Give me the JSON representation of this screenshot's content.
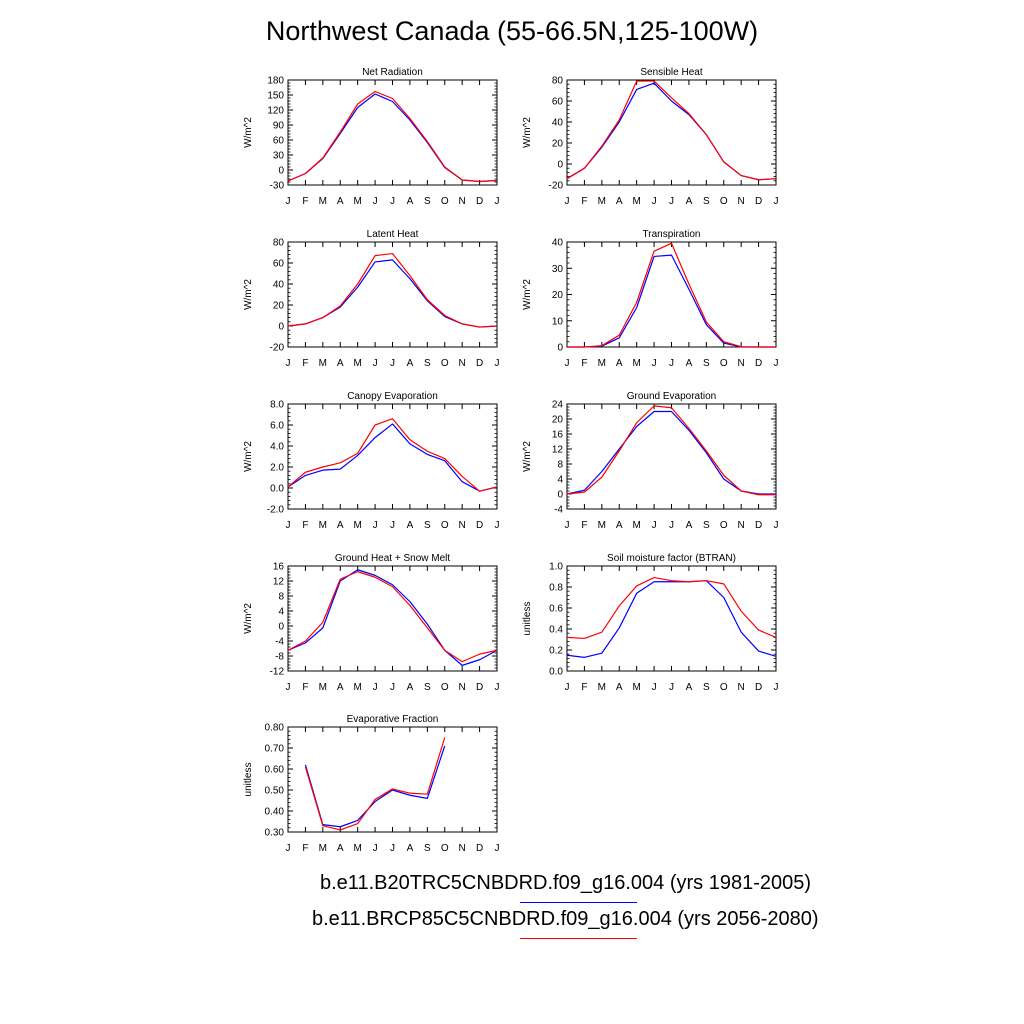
{
  "title": "Northwest Canada (55-66.5N,125-100W)",
  "months": [
    "J",
    "F",
    "M",
    "A",
    "M",
    "J",
    "J",
    "A",
    "S",
    "O",
    "N",
    "D",
    "J"
  ],
  "colors": {
    "series1": "#0000ff",
    "series2": "#ff0000"
  },
  "legend": [
    {
      "label": "b.e11.B20TRC5CNBDRD.f09_g16.004 (yrs 1981-2005)",
      "color": "#0000ff"
    },
    {
      "label": "b.e11.BRCP85C5CNBDRD.f09_g16.004 (yrs 2056-2080)",
      "color": "#ff0000"
    }
  ],
  "chart_data": [
    {
      "type": "line",
      "title": "Net Radiation",
      "ylabel": "W/m^2",
      "ylim": [
        -30,
        180
      ],
      "yticks": [
        -30,
        0,
        30,
        60,
        90,
        120,
        150,
        180
      ],
      "ytick_labels": [
        "-30",
        "0",
        "30",
        "60",
        "90",
        "120",
        "150",
        "180"
      ],
      "series": [
        {
          "color": "#0000ff",
          "values": [
            -22,
            -7,
            23,
            73,
            125,
            152,
            137,
            100,
            55,
            5,
            -20,
            -23,
            -21
          ]
        },
        {
          "color": "#ff0000",
          "values": [
            -22,
            -7,
            24,
            76,
            132,
            157,
            143,
            103,
            57,
            6,
            -20,
            -23,
            -21
          ]
        }
      ]
    },
    {
      "type": "line",
      "title": "Sensible Heat",
      "ylabel": "W/m^2",
      "ylim": [
        -20,
        80
      ],
      "yticks": [
        -20,
        0,
        20,
        40,
        60,
        80
      ],
      "ytick_labels": [
        "-20",
        "0",
        "20",
        "40",
        "60",
        "80"
      ],
      "series": [
        {
          "color": "#0000ff",
          "values": [
            -14,
            -4,
            16,
            40,
            71,
            77,
            60,
            47,
            28,
            2,
            -11,
            -15,
            -14
          ]
        },
        {
          "color": "#ff0000",
          "values": [
            -14,
            -4,
            17,
            42,
            79,
            79,
            63,
            48,
            28,
            2,
            -11,
            -15,
            -14
          ]
        }
      ]
    },
    {
      "type": "line",
      "title": "Latent Heat",
      "ylabel": "W/m^2",
      "ylim": [
        -20,
        80
      ],
      "yticks": [
        -20,
        0,
        20,
        40,
        60,
        80
      ],
      "ytick_labels": [
        "-20",
        "0",
        "20",
        "40",
        "60",
        "80"
      ],
      "series": [
        {
          "color": "#0000ff",
          "values": [
            0,
            2,
            8,
            18,
            37,
            61,
            63,
            45,
            24,
            9,
            2,
            -1,
            0
          ]
        },
        {
          "color": "#ff0000",
          "values": [
            0,
            2,
            8,
            19,
            40,
            67,
            69,
            48,
            25,
            10,
            2,
            -1,
            0
          ]
        }
      ]
    },
    {
      "type": "line",
      "title": "Transpiration",
      "ylabel": "W/m^2",
      "ylim": [
        0,
        40
      ],
      "yticks": [
        0,
        10,
        20,
        30,
        40
      ],
      "ytick_labels": [
        "0",
        "10",
        "20",
        "30",
        "40"
      ],
      "series": [
        {
          "color": "#0000ff",
          "values": [
            0,
            0,
            0.3,
            3.5,
            15,
            34.5,
            35,
            22,
            8.5,
            1.5,
            0,
            0,
            0
          ]
        },
        {
          "color": "#ff0000",
          "values": [
            0,
            0,
            0.5,
            4.5,
            17,
            36.5,
            39.5,
            24,
            9.5,
            2,
            0.1,
            0,
            0
          ]
        }
      ]
    },
    {
      "type": "line",
      "title": "Canopy Evaporation",
      "ylabel": "W/m^2",
      "ylim": [
        -2.0,
        8.0
      ],
      "yticks": [
        -2,
        0,
        2,
        4,
        6,
        8
      ],
      "ytick_labels": [
        "-2.0",
        "0.0",
        "2.0",
        "4.0",
        "6.0",
        "8.0"
      ],
      "series": [
        {
          "color": "#0000ff",
          "values": [
            0.1,
            1.2,
            1.7,
            1.8,
            3.1,
            4.8,
            6.1,
            4.2,
            3.2,
            2.6,
            0.6,
            -0.3,
            0.1
          ]
        },
        {
          "color": "#ff0000",
          "values": [
            0.1,
            1.5,
            2.0,
            2.4,
            3.3,
            6.0,
            6.6,
            4.6,
            3.5,
            2.8,
            1.1,
            -0.3,
            0.1
          ]
        }
      ]
    },
    {
      "type": "line",
      "title": "Ground Evaporation",
      "ylabel": "W/m^2",
      "ylim": [
        -4,
        24
      ],
      "yticks": [
        -4,
        0,
        4,
        8,
        12,
        16,
        20,
        24
      ],
      "ytick_labels": [
        "-4",
        "0",
        "4",
        "8",
        "12",
        "16",
        "20",
        "24"
      ],
      "series": [
        {
          "color": "#0000ff",
          "values": [
            0,
            1,
            6,
            12,
            18,
            22,
            22,
            17,
            11,
            4,
            0.8,
            0,
            0
          ]
        },
        {
          "color": "#ff0000",
          "values": [
            0,
            0.5,
            4.5,
            11.5,
            19,
            23.5,
            23,
            17.5,
            11.5,
            5,
            0.8,
            -0.2,
            -0.2
          ]
        }
      ]
    },
    {
      "type": "line",
      "title": "Ground Heat + Snow Melt",
      "ylabel": "W/m^2",
      "ylim": [
        -12,
        16
      ],
      "yticks": [
        -12,
        -8,
        -4,
        0,
        4,
        8,
        12,
        16
      ],
      "ytick_labels": [
        "-12",
        "-8",
        "-4",
        "0",
        "4",
        "8",
        "12",
        "16"
      ],
      "series": [
        {
          "color": "#0000ff",
          "values": [
            -6.5,
            -4.5,
            -0.5,
            12,
            15,
            13.5,
            11,
            6.5,
            0.5,
            -6.5,
            -10.5,
            -9,
            -6.5
          ]
        },
        {
          "color": "#ff0000",
          "values": [
            -6.5,
            -4,
            1,
            12.5,
            14.5,
            13,
            10.5,
            5.5,
            -0.5,
            -6.5,
            -9.5,
            -7.5,
            -6.5
          ]
        }
      ]
    },
    {
      "type": "line",
      "title": "Soil moisture factor (BTRAN)",
      "ylabel": "unitless",
      "ylim": [
        0.0,
        1.0
      ],
      "yticks": [
        0,
        0.2,
        0.4,
        0.6,
        0.8,
        1.0
      ],
      "ytick_labels": [
        "0.0",
        "0.2",
        "0.4",
        "0.6",
        "0.8",
        "1.0"
      ],
      "series": [
        {
          "color": "#0000ff",
          "values": [
            0.15,
            0.13,
            0.17,
            0.41,
            0.74,
            0.85,
            0.85,
            0.85,
            0.86,
            0.7,
            0.37,
            0.19,
            0.14
          ]
        },
        {
          "color": "#ff0000",
          "values": [
            0.32,
            0.31,
            0.37,
            0.62,
            0.81,
            0.89,
            0.86,
            0.85,
            0.86,
            0.83,
            0.57,
            0.39,
            0.32
          ]
        }
      ]
    },
    {
      "type": "line",
      "title": "Evaporative Fraction",
      "ylabel": "unitless",
      "ylim": [
        0.3,
        0.8
      ],
      "yticks": [
        0.3,
        0.4,
        0.5,
        0.6,
        0.7,
        0.8
      ],
      "ytick_labels": [
        "0.30",
        "0.40",
        "0.50",
        "0.60",
        "0.70",
        "0.80"
      ],
      "series": [
        {
          "color": "#0000ff",
          "values": [
            null,
            0.62,
            0.335,
            0.325,
            0.355,
            0.445,
            0.5,
            0.475,
            0.46,
            0.71,
            null,
            null,
            null
          ]
        },
        {
          "color": "#ff0000",
          "values": [
            null,
            0.61,
            0.33,
            0.31,
            0.34,
            0.455,
            0.505,
            0.485,
            0.48,
            0.75,
            null,
            null,
            null
          ]
        }
      ]
    }
  ]
}
